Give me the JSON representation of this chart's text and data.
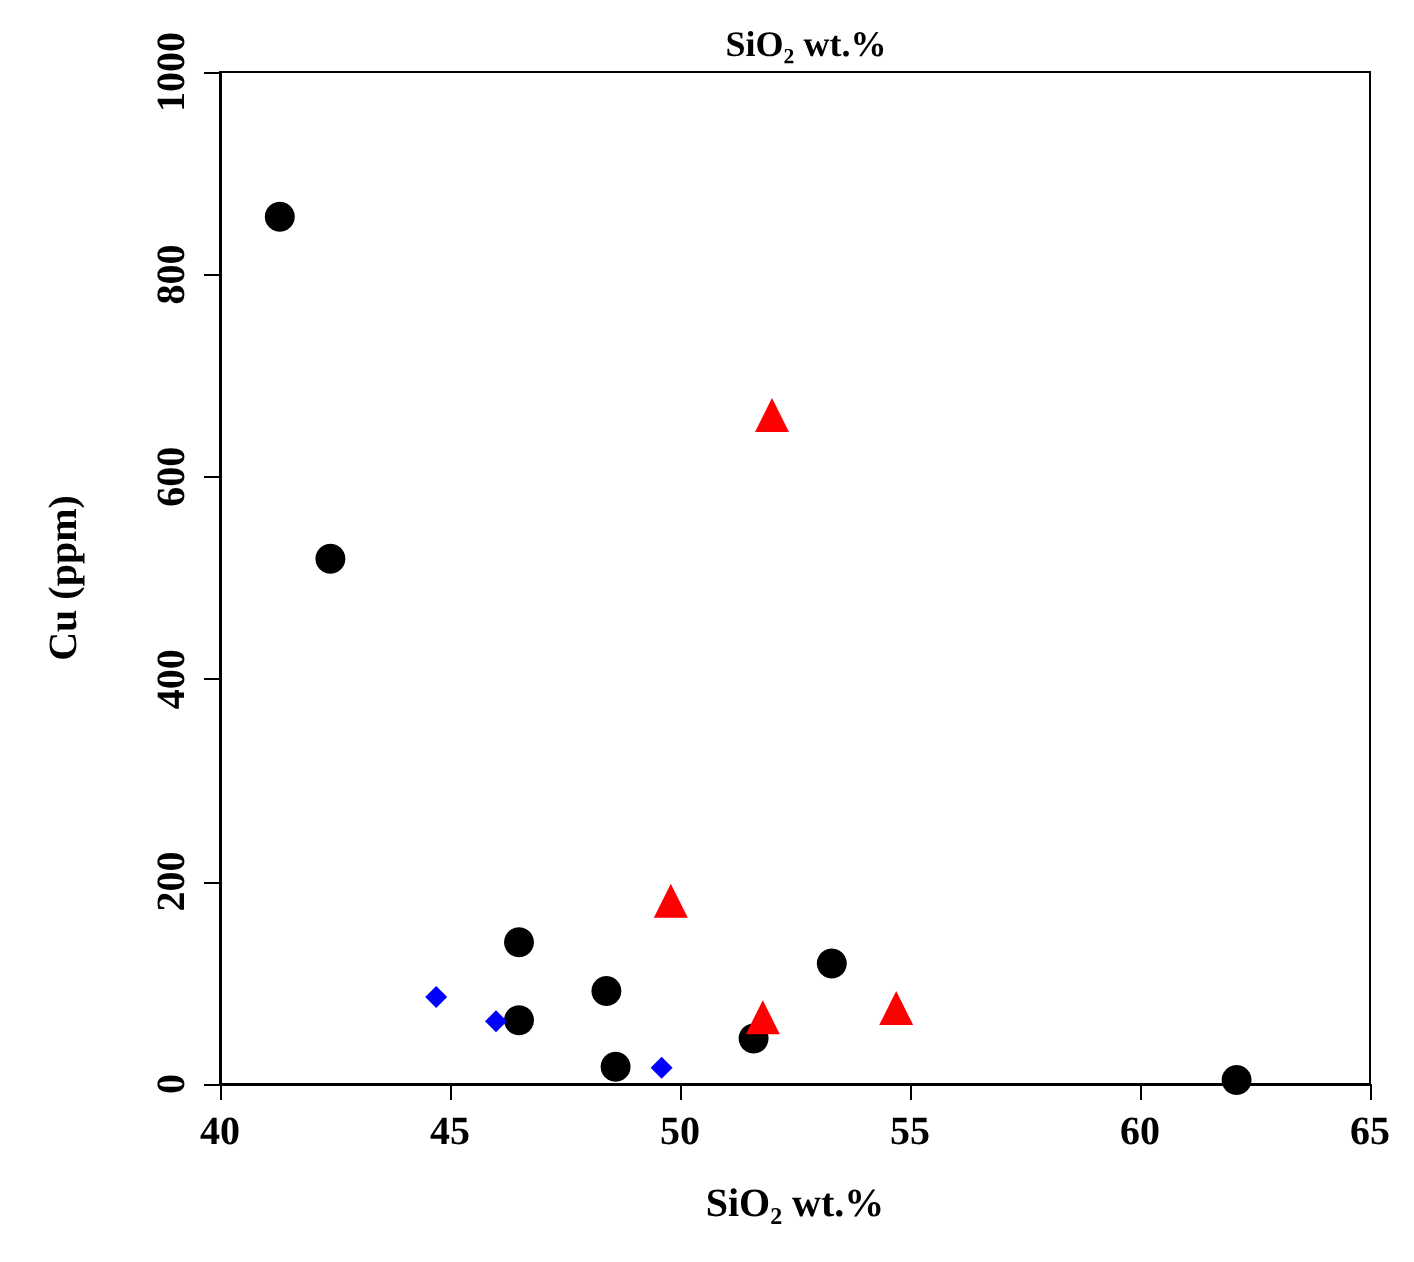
{
  "chart_data": {
    "type": "scatter",
    "title": "SiO₂ wt.%",
    "xlabel": "SiO₂ wt.%",
    "ylabel": "Cu (ppm)",
    "xlim": [
      40,
      65
    ],
    "xticks": [
      40,
      45,
      50,
      55,
      60,
      65
    ],
    "ylim": [
      0,
      1000
    ],
    "yticks": [
      0,
      200,
      400,
      600,
      800,
      1000
    ],
    "grid": false,
    "series": [
      {
        "color": "#000000",
        "marker": "circle",
        "x": [
          41.3,
          42.4,
          46.5,
          46.5,
          48.4,
          48.6,
          51.6,
          53.3,
          62.1
        ],
        "values": [
          857,
          519,
          140,
          63,
          92,
          17,
          45,
          119,
          4
        ]
      },
      {
        "color": "#ff0000",
        "marker": "triangle",
        "x": [
          52.0,
          49.8,
          51.8,
          54.7
        ],
        "values": [
          661,
          181,
          66,
          75
        ]
      },
      {
        "color": "#0000ff",
        "marker": "diamond",
        "x": [
          44.7,
          46.0,
          49.6
        ],
        "values": [
          86,
          62,
          16
        ]
      }
    ]
  }
}
